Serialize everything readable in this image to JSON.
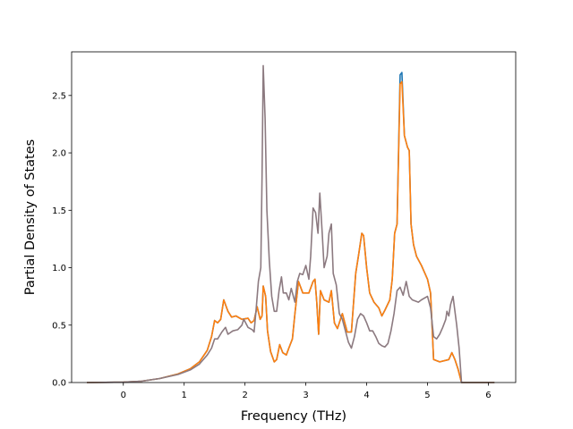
{
  "chart_data": {
    "type": "line",
    "title": "",
    "xlabel": "Frequency (THz)",
    "ylabel": "Partial Density of States",
    "xlim": [
      -0.85,
      6.45
    ],
    "ylim": [
      0.0,
      2.88
    ],
    "xticks": [
      0,
      1,
      2,
      3,
      4,
      5,
      6
    ],
    "xtick_labels": [
      "0",
      "1",
      "2",
      "3",
      "4",
      "5",
      "6"
    ],
    "yticks": [
      0.0,
      0.5,
      1.0,
      1.5,
      2.0,
      2.5
    ],
    "ytick_labels": [
      "0.0",
      "0.5",
      "1.0",
      "1.5",
      "2.0",
      "2.5"
    ],
    "grid": false,
    "legend": "none",
    "series": [
      {
        "color": "#1f77b4",
        "points": [
          [
            -0.6,
            0.0
          ],
          [
            0.0,
            0.003
          ],
          [
            0.3,
            0.012
          ],
          [
            0.6,
            0.035
          ],
          [
            0.9,
            0.075
          ],
          [
            1.1,
            0.12
          ],
          [
            1.25,
            0.18
          ],
          [
            1.38,
            0.28
          ],
          [
            1.45,
            0.4
          ],
          [
            1.5,
            0.54
          ],
          [
            1.55,
            0.52
          ],
          [
            1.6,
            0.55
          ],
          [
            1.65,
            0.72
          ],
          [
            1.72,
            0.62
          ],
          [
            1.78,
            0.57
          ],
          [
            1.85,
            0.58
          ],
          [
            1.95,
            0.55
          ],
          [
            2.05,
            0.56
          ],
          [
            2.1,
            0.52
          ],
          [
            2.15,
            0.54
          ],
          [
            2.2,
            0.66
          ],
          [
            2.25,
            0.55
          ],
          [
            2.28,
            0.58
          ],
          [
            2.3,
            0.84
          ],
          [
            2.34,
            0.75
          ],
          [
            2.37,
            0.45
          ],
          [
            2.42,
            0.27
          ],
          [
            2.48,
            0.18
          ],
          [
            2.52,
            0.2
          ],
          [
            2.57,
            0.33
          ],
          [
            2.62,
            0.26
          ],
          [
            2.68,
            0.24
          ],
          [
            2.72,
            0.3
          ],
          [
            2.78,
            0.38
          ],
          [
            2.82,
            0.6
          ],
          [
            2.88,
            0.88
          ],
          [
            2.95,
            0.78
          ],
          [
            3.05,
            0.78
          ],
          [
            3.12,
            0.88
          ],
          [
            3.15,
            0.9
          ],
          [
            3.18,
            0.7
          ],
          [
            3.21,
            0.42
          ],
          [
            3.24,
            0.8
          ],
          [
            3.3,
            0.72
          ],
          [
            3.38,
            0.7
          ],
          [
            3.42,
            0.8
          ],
          [
            3.47,
            0.52
          ],
          [
            3.52,
            0.47
          ],
          [
            3.6,
            0.6
          ],
          [
            3.68,
            0.44
          ],
          [
            3.75,
            0.44
          ],
          [
            3.82,
            0.95
          ],
          [
            3.87,
            1.12
          ],
          [
            3.92,
            1.3
          ],
          [
            3.95,
            1.28
          ],
          [
            4.0,
            1.0
          ],
          [
            4.05,
            0.78
          ],
          [
            4.12,
            0.7
          ],
          [
            4.2,
            0.65
          ],
          [
            4.25,
            0.58
          ],
          [
            4.3,
            0.63
          ],
          [
            4.38,
            0.72
          ],
          [
            4.42,
            0.9
          ],
          [
            4.46,
            1.3
          ],
          [
            4.5,
            1.38
          ],
          [
            4.55,
            2.68
          ],
          [
            4.58,
            2.7
          ],
          [
            4.62,
            2.15
          ],
          [
            4.67,
            2.05
          ],
          [
            4.7,
            2.02
          ],
          [
            4.73,
            1.38
          ],
          [
            4.77,
            1.2
          ],
          [
            4.82,
            1.1
          ],
          [
            4.9,
            1.02
          ],
          [
            5.0,
            0.9
          ],
          [
            5.05,
            0.78
          ],
          [
            5.1,
            0.2
          ],
          [
            5.2,
            0.18
          ],
          [
            5.35,
            0.2
          ],
          [
            5.4,
            0.26
          ],
          [
            5.45,
            0.2
          ],
          [
            5.5,
            0.12
          ],
          [
            5.56,
            0.0
          ],
          [
            6.1,
            0.0
          ]
        ]
      },
      {
        "color": "#ff7f0e",
        "points": [
          [
            -0.6,
            0.0
          ],
          [
            0.0,
            0.003
          ],
          [
            0.3,
            0.012
          ],
          [
            0.6,
            0.035
          ],
          [
            0.9,
            0.075
          ],
          [
            1.1,
            0.12
          ],
          [
            1.25,
            0.18
          ],
          [
            1.38,
            0.28
          ],
          [
            1.45,
            0.4
          ],
          [
            1.5,
            0.54
          ],
          [
            1.55,
            0.52
          ],
          [
            1.6,
            0.55
          ],
          [
            1.65,
            0.72
          ],
          [
            1.72,
            0.62
          ],
          [
            1.78,
            0.57
          ],
          [
            1.85,
            0.58
          ],
          [
            1.95,
            0.55
          ],
          [
            2.05,
            0.56
          ],
          [
            2.1,
            0.52
          ],
          [
            2.15,
            0.54
          ],
          [
            2.2,
            0.66
          ],
          [
            2.25,
            0.55
          ],
          [
            2.28,
            0.58
          ],
          [
            2.3,
            0.84
          ],
          [
            2.34,
            0.75
          ],
          [
            2.37,
            0.45
          ],
          [
            2.42,
            0.27
          ],
          [
            2.48,
            0.18
          ],
          [
            2.52,
            0.2
          ],
          [
            2.57,
            0.33
          ],
          [
            2.62,
            0.26
          ],
          [
            2.68,
            0.24
          ],
          [
            2.72,
            0.3
          ],
          [
            2.78,
            0.38
          ],
          [
            2.82,
            0.6
          ],
          [
            2.88,
            0.88
          ],
          [
            2.95,
            0.78
          ],
          [
            3.05,
            0.78
          ],
          [
            3.12,
            0.88
          ],
          [
            3.15,
            0.9
          ],
          [
            3.18,
            0.7
          ],
          [
            3.21,
            0.42
          ],
          [
            3.24,
            0.8
          ],
          [
            3.3,
            0.72
          ],
          [
            3.38,
            0.7
          ],
          [
            3.42,
            0.8
          ],
          [
            3.47,
            0.52
          ],
          [
            3.52,
            0.47
          ],
          [
            3.6,
            0.6
          ],
          [
            3.68,
            0.44
          ],
          [
            3.75,
            0.44
          ],
          [
            3.82,
            0.95
          ],
          [
            3.87,
            1.12
          ],
          [
            3.92,
            1.3
          ],
          [
            3.95,
            1.28
          ],
          [
            4.0,
            1.0
          ],
          [
            4.05,
            0.78
          ],
          [
            4.12,
            0.7
          ],
          [
            4.2,
            0.65
          ],
          [
            4.25,
            0.58
          ],
          [
            4.3,
            0.63
          ],
          [
            4.38,
            0.72
          ],
          [
            4.42,
            0.9
          ],
          [
            4.46,
            1.3
          ],
          [
            4.5,
            1.38
          ],
          [
            4.55,
            2.6
          ],
          [
            4.58,
            2.62
          ],
          [
            4.62,
            2.15
          ],
          [
            4.67,
            2.05
          ],
          [
            4.7,
            2.02
          ],
          [
            4.73,
            1.38
          ],
          [
            4.77,
            1.2
          ],
          [
            4.82,
            1.1
          ],
          [
            4.9,
            1.02
          ],
          [
            5.0,
            0.9
          ],
          [
            5.05,
            0.78
          ],
          [
            5.1,
            0.2
          ],
          [
            5.2,
            0.18
          ],
          [
            5.35,
            0.2
          ],
          [
            5.4,
            0.26
          ],
          [
            5.45,
            0.2
          ],
          [
            5.5,
            0.12
          ],
          [
            5.56,
            0.0
          ],
          [
            6.1,
            0.0
          ]
        ]
      },
      {
        "color": "#8c7a80",
        "points": [
          [
            -0.6,
            0.0
          ],
          [
            0.0,
            0.003
          ],
          [
            0.3,
            0.012
          ],
          [
            0.6,
            0.035
          ],
          [
            0.9,
            0.07
          ],
          [
            1.1,
            0.11
          ],
          [
            1.25,
            0.16
          ],
          [
            1.38,
            0.24
          ],
          [
            1.45,
            0.3
          ],
          [
            1.5,
            0.38
          ],
          [
            1.55,
            0.38
          ],
          [
            1.62,
            0.44
          ],
          [
            1.68,
            0.48
          ],
          [
            1.72,
            0.42
          ],
          [
            1.8,
            0.45
          ],
          [
            1.88,
            0.46
          ],
          [
            1.95,
            0.5
          ],
          [
            1.98,
            0.55
          ],
          [
            2.05,
            0.48
          ],
          [
            2.12,
            0.46
          ],
          [
            2.15,
            0.44
          ],
          [
            2.18,
            0.62
          ],
          [
            2.22,
            0.88
          ],
          [
            2.26,
            1.0
          ],
          [
            2.28,
            1.8
          ],
          [
            2.3,
            2.76
          ],
          [
            2.33,
            2.3
          ],
          [
            2.36,
            1.5
          ],
          [
            2.4,
            1.06
          ],
          [
            2.44,
            0.75
          ],
          [
            2.48,
            0.62
          ],
          [
            2.52,
            0.62
          ],
          [
            2.56,
            0.8
          ],
          [
            2.6,
            0.92
          ],
          [
            2.63,
            0.78
          ],
          [
            2.68,
            0.78
          ],
          [
            2.72,
            0.72
          ],
          [
            2.76,
            0.82
          ],
          [
            2.82,
            0.7
          ],
          [
            2.86,
            0.88
          ],
          [
            2.9,
            0.95
          ],
          [
            2.95,
            0.94
          ],
          [
            3.0,
            1.02
          ],
          [
            3.05,
            0.9
          ],
          [
            3.08,
            1.1
          ],
          [
            3.12,
            1.52
          ],
          [
            3.16,
            1.48
          ],
          [
            3.2,
            1.3
          ],
          [
            3.23,
            1.65
          ],
          [
            3.27,
            1.3
          ],
          [
            3.3,
            1.0
          ],
          [
            3.35,
            1.1
          ],
          [
            3.38,
            1.3
          ],
          [
            3.42,
            1.38
          ],
          [
            3.45,
            0.95
          ],
          [
            3.5,
            0.85
          ],
          [
            3.55,
            0.6
          ],
          [
            3.6,
            0.55
          ],
          [
            3.65,
            0.45
          ],
          [
            3.7,
            0.35
          ],
          [
            3.75,
            0.3
          ],
          [
            3.8,
            0.4
          ],
          [
            3.85,
            0.55
          ],
          [
            3.9,
            0.6
          ],
          [
            3.95,
            0.58
          ],
          [
            4.0,
            0.52
          ],
          [
            4.05,
            0.45
          ],
          [
            4.1,
            0.45
          ],
          [
            4.15,
            0.4
          ],
          [
            4.2,
            0.34
          ],
          [
            4.25,
            0.32
          ],
          [
            4.3,
            0.31
          ],
          [
            4.35,
            0.34
          ],
          [
            4.4,
            0.45
          ],
          [
            4.45,
            0.6
          ],
          [
            4.5,
            0.8
          ],
          [
            4.55,
            0.83
          ],
          [
            4.6,
            0.76
          ],
          [
            4.65,
            0.88
          ],
          [
            4.7,
            0.75
          ],
          [
            4.75,
            0.72
          ],
          [
            4.85,
            0.7
          ],
          [
            4.9,
            0.72
          ],
          [
            5.0,
            0.75
          ],
          [
            5.05,
            0.65
          ],
          [
            5.1,
            0.4
          ],
          [
            5.15,
            0.38
          ],
          [
            5.2,
            0.42
          ],
          [
            5.25,
            0.48
          ],
          [
            5.3,
            0.55
          ],
          [
            5.32,
            0.62
          ],
          [
            5.35,
            0.58
          ],
          [
            5.38,
            0.68
          ],
          [
            5.42,
            0.75
          ],
          [
            5.48,
            0.5
          ],
          [
            5.52,
            0.3
          ],
          [
            5.56,
            0.0
          ],
          [
            6.1,
            0.0
          ]
        ]
      }
    ]
  }
}
